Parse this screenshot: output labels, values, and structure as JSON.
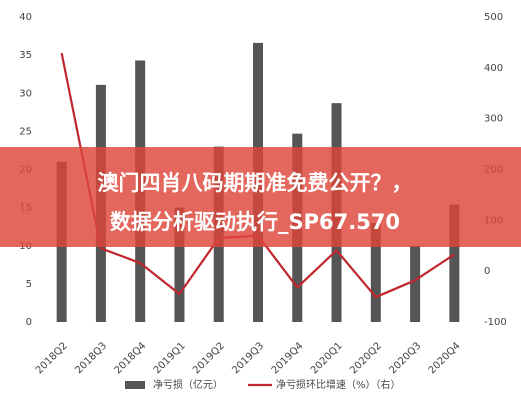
{
  "chart_data": {
    "type": "bar-line",
    "categories": [
      "2018Q2",
      "2018Q3",
      "2018Q4",
      "2019Q1",
      "2019Q2",
      "2019Q3",
      "2019Q4",
      "2020Q1",
      "2020Q2",
      "2020Q3",
      "2020Q4"
    ],
    "series": [
      {
        "name": "净亏损（亿元）",
        "type": "bar",
        "color": "#555555",
        "values": [
          21,
          31.1,
          34.3,
          15,
          23,
          36.6,
          24.7,
          28.7,
          13,
          10,
          15.4
        ]
      },
      {
        "name": "净亏损环比增速（%）（右）",
        "type": "line",
        "axis": "y2",
        "color": "#c0272d",
        "values": [
          429,
          45,
          16,
          -45,
          65,
          70,
          -32,
          41,
          -51,
          -18,
          33
        ]
      }
    ],
    "ylim": [
      0,
      40
    ],
    "yticks": [
      0,
      5,
      10,
      15,
      20,
      25,
      30,
      35,
      40
    ],
    "y2lim": [
      -100,
      500
    ],
    "y2ticks": [
      -100,
      0,
      100,
      200,
      300,
      400,
      500
    ],
    "grid": false,
    "legend": "bottom"
  },
  "banner": {
    "lines": [
      "澳门四肖八码期期准免费公开？，",
      "数据分析驱动执行_SP67.570"
    ]
  }
}
